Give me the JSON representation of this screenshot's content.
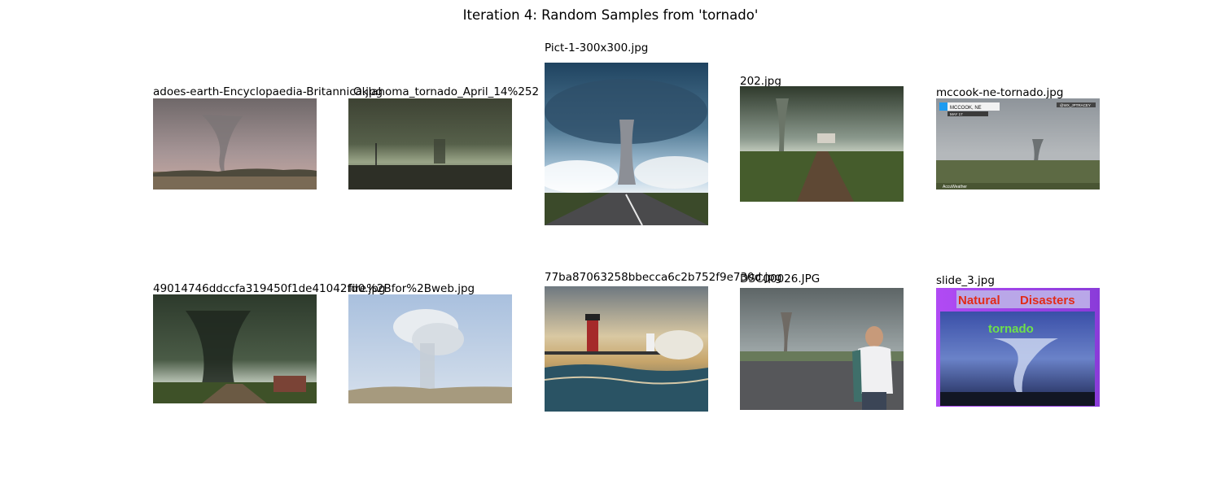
{
  "figure": {
    "title": "Iteration 4: Random Samples from 'tornado'"
  },
  "samples": [
    {
      "filename": "adoes-earth-Encyclopaedia-Britannica.jpg",
      "icon": "tornado-field-photo"
    },
    {
      "filename": "Oklahoma_tornado_April_14%252",
      "icon": "tornado-storm-photo"
    },
    {
      "filename": "Pict-1-300x300.jpg",
      "icon": "tornado-road-photo"
    },
    {
      "filename": "202.jpg",
      "icon": "tornado-field-road-photo"
    },
    {
      "filename": "mccook-ne-tornado.jpg",
      "icon": "tornado-news-screenshot",
      "overlay": {
        "location": "MCCOOK, NE",
        "date": "MAY 17",
        "handle": "@WX_JPTRACEY",
        "brand": "AccuWeather"
      }
    },
    {
      "filename": "49014746ddccfa319450f1de41042fd0.jpg",
      "icon": "tornado-farm-photo"
    },
    {
      "filename": "fire%2Bfor%2Bweb.jpg",
      "icon": "smoke-plume-photo"
    },
    {
      "filename": "77ba87063258bbecca6c2b752f9e730d.jpg",
      "icon": "lighthouse-waves-photo"
    },
    {
      "filename": "DSC00026.JPG",
      "icon": "tornado-person-photo"
    },
    {
      "filename": "slide_3.jpg",
      "icon": "natural-disasters-slide",
      "slide": {
        "heading_left": "Natural",
        "heading_right": "Disasters",
        "subtitle": "tornado"
      }
    }
  ]
}
